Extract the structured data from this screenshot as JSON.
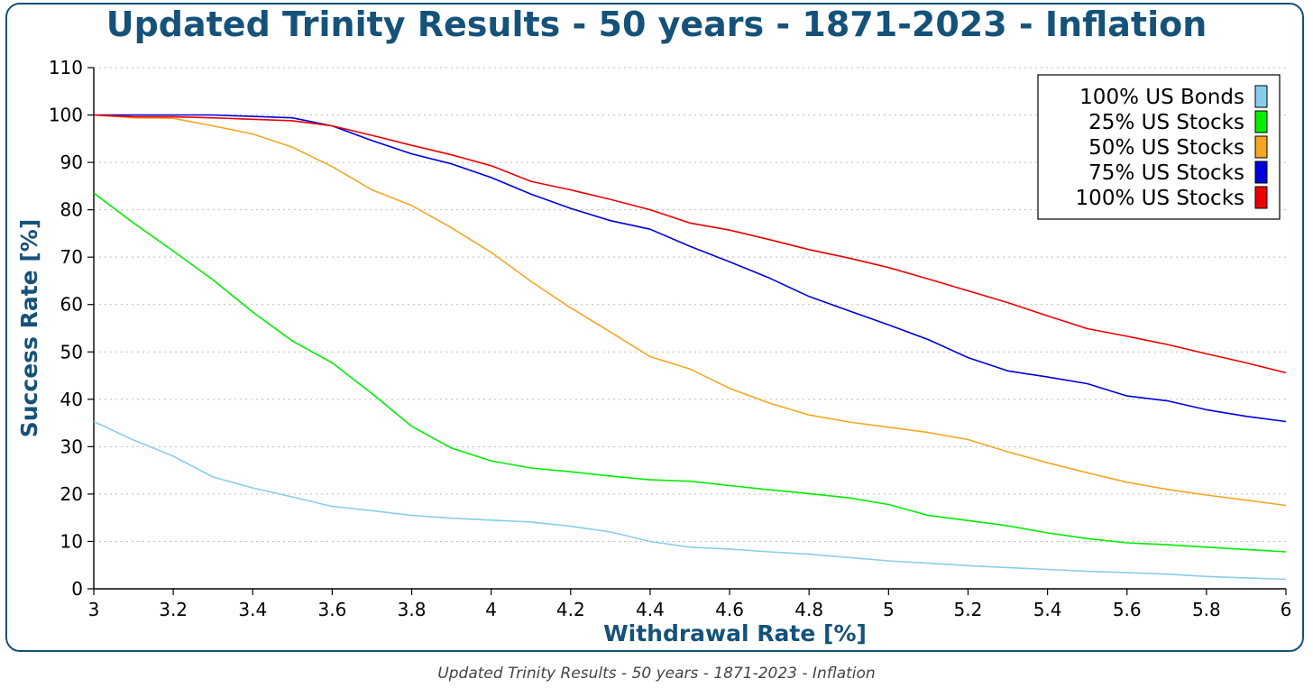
{
  "chart_data": {
    "type": "line",
    "title": "Updated Trinity Results - 50 years - 1871-2023 - Inflation",
    "xlabel": "Withdrawal Rate [%]",
    "ylabel": "Success Rate [%]",
    "xlim": [
      3,
      6
    ],
    "ylim": [
      0,
      110
    ],
    "x_ticks": [
      "3",
      "3.2",
      "3.4",
      "3.6",
      "3.8",
      "4",
      "4.2",
      "4.4",
      "4.6",
      "4.8",
      "5",
      "5.2",
      "5.4",
      "5.6",
      "5.8",
      "6"
    ],
    "y_ticks": [
      "0",
      "10",
      "20",
      "30",
      "40",
      "50",
      "60",
      "70",
      "80",
      "90",
      "100",
      "110"
    ],
    "grid": "horizontal dotted",
    "legend_position": "top-right",
    "x": [
      3.0,
      3.1,
      3.2,
      3.3,
      3.4,
      3.5,
      3.6,
      3.7,
      3.8,
      3.9,
      4.0,
      4.1,
      4.2,
      4.3,
      4.4,
      4.5,
      4.6,
      4.7,
      4.8,
      4.9,
      5.0,
      5.1,
      5.2,
      5.3,
      5.4,
      5.5,
      5.6,
      5.7,
      5.8,
      5.9,
      6.0
    ],
    "series": [
      {
        "name": "100% US Bonds",
        "color": "#87ceeb",
        "values": [
          35.3,
          31.4,
          28.0,
          23.6,
          21.3,
          19.4,
          17.4,
          16.5,
          15.5,
          14.9,
          14.5,
          14.1,
          13.2,
          12.0,
          10.0,
          8.8,
          8.4,
          7.8,
          7.3,
          6.6,
          5.9,
          5.4,
          4.9,
          4.5,
          4.1,
          3.7,
          3.4,
          3.1,
          2.6,
          2.3,
          2.0
        ]
      },
      {
        "name": "25% US Stocks",
        "color": "#00ee00",
        "values": [
          83.5,
          77.2,
          71.3,
          65.2,
          58.4,
          52.3,
          47.7,
          41.2,
          34.3,
          29.7,
          27.0,
          25.5,
          24.7,
          23.8,
          23.0,
          22.7,
          21.8,
          20.9,
          20.1,
          19.2,
          17.8,
          15.5,
          14.4,
          13.3,
          11.8,
          10.6,
          9.7,
          9.3,
          8.8,
          8.3,
          7.8
        ]
      },
      {
        "name": "50% US Stocks",
        "color": "#f5a623",
        "values": [
          100,
          99.4,
          99.3,
          97.7,
          96.0,
          93.2,
          89.1,
          84.2,
          80.9,
          76.2,
          71.0,
          64.9,
          59.3,
          54.2,
          49.0,
          46.4,
          42.3,
          39.2,
          36.7,
          35.2,
          34.1,
          33.0,
          31.5,
          28.9,
          26.6,
          24.5,
          22.5,
          21.0,
          19.8,
          18.7,
          17.6
        ]
      },
      {
        "name": "75% US Stocks",
        "color": "#0000dd",
        "values": [
          100,
          100,
          100,
          100,
          99.7,
          99.4,
          97.7,
          94.6,
          91.8,
          89.7,
          86.8,
          83.3,
          80.3,
          77.7,
          75.9,
          72.3,
          69.0,
          65.6,
          61.7,
          58.7,
          55.7,
          52.6,
          48.8,
          46.0,
          44.7,
          43.3,
          40.7,
          39.7,
          37.8,
          36.4,
          35.3
        ]
      },
      {
        "name": "100% US Stocks",
        "color": "#ee0000",
        "values": [
          100,
          99.6,
          99.6,
          99.4,
          99.1,
          98.8,
          97.7,
          95.7,
          93.6,
          91.6,
          89.3,
          86.0,
          84.2,
          82.2,
          80.0,
          77.2,
          75.7,
          73.7,
          71.6,
          69.8,
          67.8,
          65.4,
          62.9,
          60.4,
          57.6,
          54.9,
          53.3,
          51.6,
          49.6,
          47.7,
          45.6
        ]
      }
    ]
  },
  "caption": "Updated Trinity Results - 50 years - 1871-2023 - Inflation"
}
